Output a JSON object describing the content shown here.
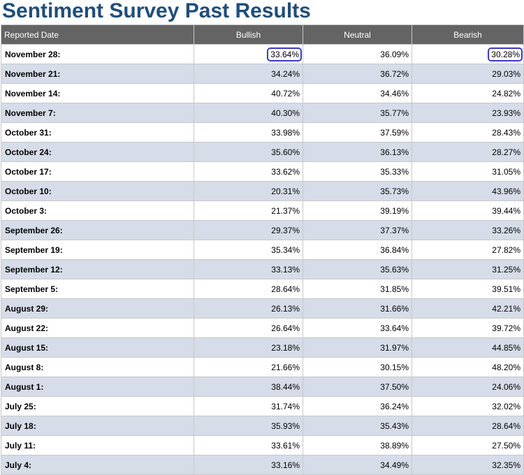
{
  "page": {
    "title": "Sentiment Survey Past Results"
  },
  "table": {
    "headers": {
      "date": "Reported Date",
      "bullish": "Bullish",
      "neutral": "Neutral",
      "bearish": "Bearish"
    },
    "colors": {
      "header_bg": "#646464",
      "row_alt_bg": "#d6dce8",
      "title_color": "#1f4e79",
      "highlight_border": "#3b3bc4"
    },
    "highlighted_cells": [
      "rows.0.bullish",
      "rows.0.bearish"
    ],
    "rows": [
      {
        "date": "November 28:",
        "bullish": "33.64%",
        "neutral": "36.09%",
        "bearish": "30.28%"
      },
      {
        "date": "November 21:",
        "bullish": "34.24%",
        "neutral": "36.72%",
        "bearish": "29.03%"
      },
      {
        "date": "November 14:",
        "bullish": "40.72%",
        "neutral": "34.46%",
        "bearish": "24.82%"
      },
      {
        "date": "November 7:",
        "bullish": "40.30%",
        "neutral": "35.77%",
        "bearish": "23.93%"
      },
      {
        "date": "October 31:",
        "bullish": "33.98%",
        "neutral": "37.59%",
        "bearish": "28.43%"
      },
      {
        "date": "October 24:",
        "bullish": "35.60%",
        "neutral": "36.13%",
        "bearish": "28.27%"
      },
      {
        "date": "October 17:",
        "bullish": "33.62%",
        "neutral": "35.33%",
        "bearish": "31.05%"
      },
      {
        "date": "October 10:",
        "bullish": "20.31%",
        "neutral": "35.73%",
        "bearish": "43.96%"
      },
      {
        "date": "October 3:",
        "bullish": "21.37%",
        "neutral": "39.19%",
        "bearish": "39.44%"
      },
      {
        "date": "September 26:",
        "bullish": "29.37%",
        "neutral": "37.37%",
        "bearish": "33.26%"
      },
      {
        "date": "September 19:",
        "bullish": "35.34%",
        "neutral": "36.84%",
        "bearish": "27.82%"
      },
      {
        "date": "September 12:",
        "bullish": "33.13%",
        "neutral": "35.63%",
        "bearish": "31.25%"
      },
      {
        "date": "September 5:",
        "bullish": "28.64%",
        "neutral": "31.85%",
        "bearish": "39.51%"
      },
      {
        "date": "August 29:",
        "bullish": "26.13%",
        "neutral": "31.66%",
        "bearish": "42.21%"
      },
      {
        "date": "August 22:",
        "bullish": "26.64%",
        "neutral": "33.64%",
        "bearish": "39.72%"
      },
      {
        "date": "August 15:",
        "bullish": "23.18%",
        "neutral": "31.97%",
        "bearish": "44.85%"
      },
      {
        "date": "August 8:",
        "bullish": "21.66%",
        "neutral": "30.15%",
        "bearish": "48.20%"
      },
      {
        "date": "August 1:",
        "bullish": "38.44%",
        "neutral": "37.50%",
        "bearish": "24.06%"
      },
      {
        "date": "July 25:",
        "bullish": "31.74%",
        "neutral": "36.24%",
        "bearish": "32.02%"
      },
      {
        "date": "July 18:",
        "bullish": "35.93%",
        "neutral": "35.43%",
        "bearish": "28.64%"
      },
      {
        "date": "July 11:",
        "bullish": "33.61%",
        "neutral": "38.89%",
        "bearish": "27.50%"
      },
      {
        "date": "July 4:",
        "bullish": "33.16%",
        "neutral": "34.49%",
        "bearish": "32.35%"
      }
    ]
  }
}
